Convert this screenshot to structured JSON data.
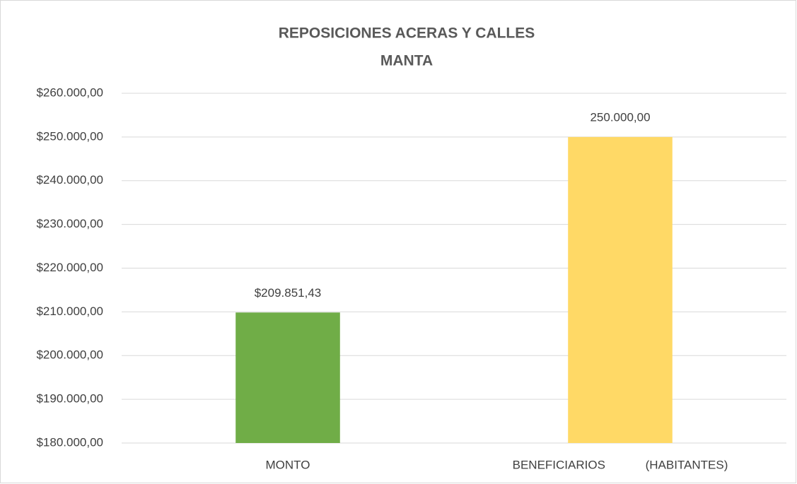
{
  "chart_data": {
    "type": "bar",
    "title": "REPOSICIONES ACERAS Y CALLES",
    "subtitle": "MANTA",
    "categories": [
      "MONTO",
      "BENEFICIARIOS            (HABITANTES)"
    ],
    "values": [
      209851.43,
      250000
    ],
    "value_labels": [
      "$209.851,43",
      "250.000,00"
    ],
    "colors": [
      "#70ad47",
      "#ffd966"
    ],
    "ylim": [
      180000,
      260000
    ],
    "yticks": [
      {
        "value": 180000,
        "label": "$180.000,00"
      },
      {
        "value": 190000,
        "label": "$190.000,00"
      },
      {
        "value": 200000,
        "label": "$200.000,00"
      },
      {
        "value": 210000,
        "label": "$210.000,00"
      },
      {
        "value": 220000,
        "label": "$220.000,00"
      },
      {
        "value": 230000,
        "label": "$230.000,00"
      },
      {
        "value": 240000,
        "label": "$240.000,00"
      },
      {
        "value": 250000,
        "label": "$250.000,00"
      },
      {
        "value": 260000,
        "label": "$260.000,00"
      }
    ],
    "grid": true
  }
}
